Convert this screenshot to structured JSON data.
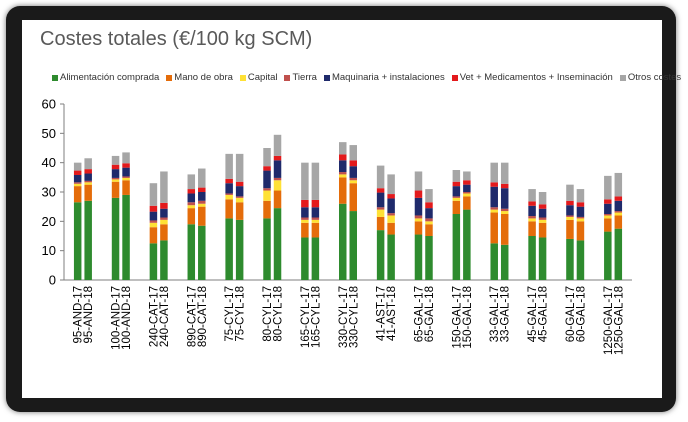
{
  "chart_data": {
    "type": "bar",
    "stacked": true,
    "title": "Costes totales (€/100 kg SCM)",
    "xlabel": "",
    "ylabel": "",
    "ylim": [
      0,
      60
    ],
    "yticks": [
      0,
      10,
      20,
      30,
      40,
      50,
      60
    ],
    "grid": false,
    "legend_position": "top",
    "categories": [
      "95-AND-17",
      "95-AND-18",
      "100-AND-17",
      "100-AND-18",
      "240-CAT-17",
      "240-CAT-18",
      "890-CAT-17",
      "890-CAT-18",
      "75-CYL-17",
      "75-CYL-18",
      "80-CYL-17",
      "80-CYL-18",
      "165-CYL-17",
      "165-CYL-18",
      "330-CYL-17",
      "330-CYL-18",
      "41-AST-17",
      "41-AST-18",
      "65-GAL-17",
      "65-GAL-18",
      "150-GAL-17",
      "150-GAL-18",
      "33-GAL-17",
      "33-GAL-18",
      "45-GAL-17",
      "45-GAL-18",
      "60-GAL-17",
      "60-GAL-18",
      "1250-GAL-17",
      "1250-GAL-18"
    ],
    "series": [
      {
        "name": "Alimentación comprada",
        "color": "#2e8b2e",
        "values": [
          26.5,
          27.0,
          28.0,
          29.0,
          12.5,
          13.5,
          19.0,
          18.5,
          21.0,
          20.5,
          21.0,
          24.5,
          14.5,
          14.5,
          26.0,
          23.5,
          17.0,
          15.5,
          15.5,
          15.0,
          22.5,
          24.0,
          12.5,
          12.0,
          15.0,
          14.5,
          14.0,
          13.5,
          16.5,
          17.5
        ]
      },
      {
        "name": "Mano de obra",
        "color": "#e46c0a",
        "values": [
          5.5,
          5.5,
          5.5,
          5.0,
          5.5,
          5.5,
          5.5,
          6.5,
          6.5,
          6.0,
          6.0,
          6.0,
          5.0,
          5.0,
          9.0,
          9.5,
          4.5,
          4.0,
          4.5,
          4.0,
          4.5,
          4.5,
          10.5,
          10.5,
          5.0,
          5.0,
          6.5,
          6.5,
          4.5,
          4.5
        ]
      },
      {
        "name": "Capital",
        "color": "#ffe135",
        "values": [
          0.8,
          0.8,
          0.8,
          0.8,
          1.5,
          1.5,
          1.0,
          1.0,
          1.5,
          1.5,
          3.5,
          3.5,
          1.0,
          1.0,
          1.0,
          1.0,
          2.5,
          2.5,
          1.0,
          1.0,
          1.0,
          1.0,
          1.0,
          1.0,
          1.0,
          1.0,
          1.0,
          1.0,
          1.0,
          1.0
        ]
      },
      {
        "name": "Tierra",
        "color": "#c0504d",
        "values": [
          0.5,
          0.5,
          0.5,
          0.5,
          0.8,
          0.8,
          1.0,
          1.0,
          0.5,
          0.5,
          0.8,
          0.8,
          0.8,
          0.8,
          0.8,
          0.8,
          0.8,
          0.8,
          1.0,
          1.0,
          0.5,
          0.5,
          0.8,
          0.8,
          0.8,
          0.8,
          0.5,
          0.5,
          0.5,
          0.5
        ]
      },
      {
        "name": "Maquinaria + instalaciones",
        "color": "#1f2a6b",
        "values": [
          2.5,
          2.5,
          3.0,
          3.0,
          3.0,
          3.0,
          3.0,
          3.0,
          3.5,
          3.5,
          6.0,
          6.0,
          3.5,
          3.5,
          4.0,
          4.0,
          5.0,
          5.0,
          6.0,
          3.5,
          3.5,
          2.5,
          7.0,
          7.0,
          3.5,
          3.0,
          3.5,
          3.5,
          3.5,
          3.5
        ]
      },
      {
        "name": "Vet + Medicamentos + Inseminación",
        "color": "#e31a1c",
        "values": [
          1.5,
          1.5,
          1.5,
          1.5,
          2.0,
          2.0,
          1.5,
          1.5,
          1.5,
          1.5,
          1.5,
          1.5,
          2.5,
          2.5,
          2.0,
          2.0,
          1.5,
          1.5,
          2.5,
          2.0,
          1.5,
          1.5,
          1.5,
          1.5,
          1.5,
          1.5,
          1.5,
          1.5,
          1.5,
          1.5
        ]
      },
      {
        "name": "Otros costes",
        "color": "#a6a6a6",
        "values": [
          2.7,
          3.7,
          3.0,
          3.7,
          7.7,
          10.7,
          5.0,
          6.5,
          8.5,
          9.5,
          6.2,
          7.2,
          12.7,
          12.7,
          4.2,
          5.2,
          7.7,
          6.7,
          6.5,
          4.5,
          4.0,
          3.0,
          6.7,
          7.2,
          4.2,
          4.2,
          5.5,
          4.5,
          8.0,
          8.0
        ]
      }
    ]
  }
}
